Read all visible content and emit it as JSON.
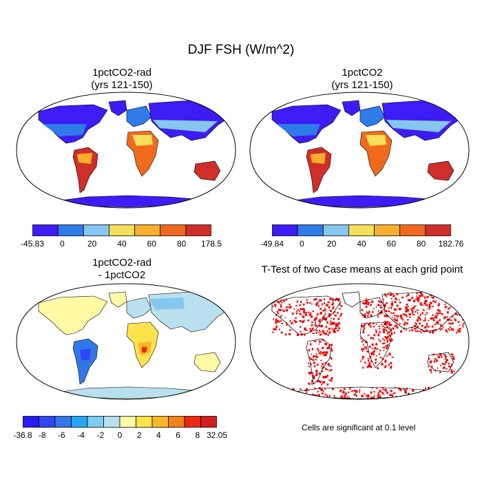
{
  "title": "DJF FSH (W/m^2)",
  "panels": [
    {
      "title_line1": "1pctCO2-rad",
      "title_line2": "(yrs 121-150)",
      "colorbar": {
        "labels": [
          "-45.83",
          "0",
          "20",
          "40",
          "60",
          "80",
          "178.5"
        ],
        "colors": [
          "#3d1cf5",
          "#2f7bea",
          "#87c6ee",
          "#f7df5a",
          "#f9ad2c",
          "#f06a1e",
          "#cf2e2a"
        ]
      }
    },
    {
      "title_line1": "1pctCO2",
      "title_line2": "(yrs 121-150)",
      "colorbar": {
        "labels": [
          "-49.84",
          "0",
          "20",
          "40",
          "60",
          "80",
          "182.76"
        ],
        "colors": [
          "#3d1cf5",
          "#2f7bea",
          "#87c6ee",
          "#f7df5a",
          "#f9ad2c",
          "#f06a1e",
          "#cf2e2a"
        ]
      }
    },
    {
      "title_line1": "1pctCO2-rad",
      "title_line2": "- 1pctCO2",
      "colorbar": {
        "labels": [
          "-36.8",
          "-8",
          "-6",
          "-4",
          "-2",
          "0",
          "2",
          "4",
          "6",
          "8",
          "32.05"
        ],
        "colors": [
          "#2b1bf0",
          "#2e46f5",
          "#3277e8",
          "#25a6f4",
          "#7ccdf3",
          "#b9e0ee",
          "#fffaa4",
          "#fde44d",
          "#fbb628",
          "#f77f17",
          "#ec2812",
          "#d51f1f"
        ]
      }
    },
    {
      "title_line1": "T-Test of two Case means at each grid point",
      "title_line2": "",
      "note": "Cells are significant at 0.1 level"
    }
  ],
  "map_palette": {
    "ocean": "#ffffff",
    "sig": "#ee0000",
    "outline": "#000000"
  }
}
